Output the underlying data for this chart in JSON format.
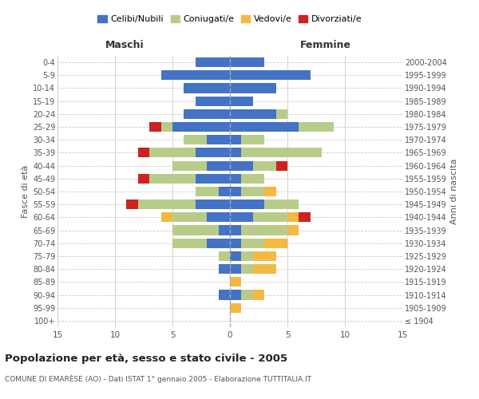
{
  "age_groups": [
    "100+",
    "95-99",
    "90-94",
    "85-89",
    "80-84",
    "75-79",
    "70-74",
    "65-69",
    "60-64",
    "55-59",
    "50-54",
    "45-49",
    "40-44",
    "35-39",
    "30-34",
    "25-29",
    "20-24",
    "15-19",
    "10-14",
    "5-9",
    "0-4"
  ],
  "birth_years": [
    "≤ 1904",
    "1905-1909",
    "1910-1914",
    "1915-1919",
    "1920-1924",
    "1925-1929",
    "1930-1934",
    "1935-1939",
    "1940-1944",
    "1945-1949",
    "1950-1954",
    "1955-1959",
    "1960-1964",
    "1965-1969",
    "1970-1974",
    "1975-1979",
    "1980-1984",
    "1985-1989",
    "1990-1994",
    "1995-1999",
    "2000-2004"
  ],
  "males": {
    "celibi": [
      0,
      0,
      1,
      0,
      1,
      0,
      2,
      1,
      2,
      3,
      1,
      3,
      2,
      3,
      2,
      5,
      4,
      3,
      4,
      6,
      3
    ],
    "coniugati": [
      0,
      0,
      0,
      0,
      0,
      1,
      3,
      4,
      3,
      5,
      2,
      4,
      3,
      4,
      2,
      1,
      0,
      0,
      0,
      0,
      0
    ],
    "vedovi": [
      0,
      0,
      0,
      0,
      0,
      0,
      0,
      0,
      1,
      0,
      0,
      0,
      0,
      0,
      0,
      0,
      0,
      0,
      0,
      0,
      0
    ],
    "divorziati": [
      0,
      0,
      0,
      0,
      0,
      0,
      0,
      0,
      0,
      1,
      0,
      1,
      0,
      1,
      0,
      1,
      0,
      0,
      0,
      0,
      0
    ]
  },
  "females": {
    "nubili": [
      0,
      0,
      1,
      0,
      1,
      1,
      1,
      1,
      2,
      3,
      1,
      1,
      2,
      1,
      1,
      6,
      4,
      2,
      4,
      7,
      3
    ],
    "coniugate": [
      0,
      0,
      1,
      0,
      1,
      1,
      2,
      4,
      3,
      3,
      2,
      2,
      2,
      7,
      2,
      3,
      1,
      0,
      0,
      0,
      0
    ],
    "vedove": [
      0,
      1,
      1,
      1,
      2,
      2,
      2,
      1,
      1,
      0,
      1,
      0,
      0,
      0,
      0,
      0,
      0,
      0,
      0,
      0,
      0
    ],
    "divorziate": [
      0,
      0,
      0,
      0,
      0,
      0,
      0,
      0,
      1,
      0,
      0,
      0,
      1,
      0,
      0,
      0,
      0,
      0,
      0,
      0,
      0
    ]
  },
  "colors": {
    "celibi_nubili": "#4472C4",
    "coniugati": "#B8CC8A",
    "vedovi": "#F4B942",
    "divorziati": "#CC2222"
  },
  "xlim": 15,
  "title": "Popolazione per età, sesso e stato civile - 2005",
  "subtitle": "COMUNE DI EMARÈSE (AO) - Dati ISTAT 1° gennaio 2005 - Elaborazione TUTTITALIA.IT",
  "ylabel_left": "Fasce di età",
  "ylabel_right": "Anni di nascita",
  "xlabel_left": "Maschi",
  "xlabel_right": "Femmine",
  "legend_labels": [
    "Celibi/Nubili",
    "Coniugati/e",
    "Vedovi/e",
    "Divorziati/e"
  ],
  "background_color": "#ffffff",
  "grid_color": "#cccccc"
}
